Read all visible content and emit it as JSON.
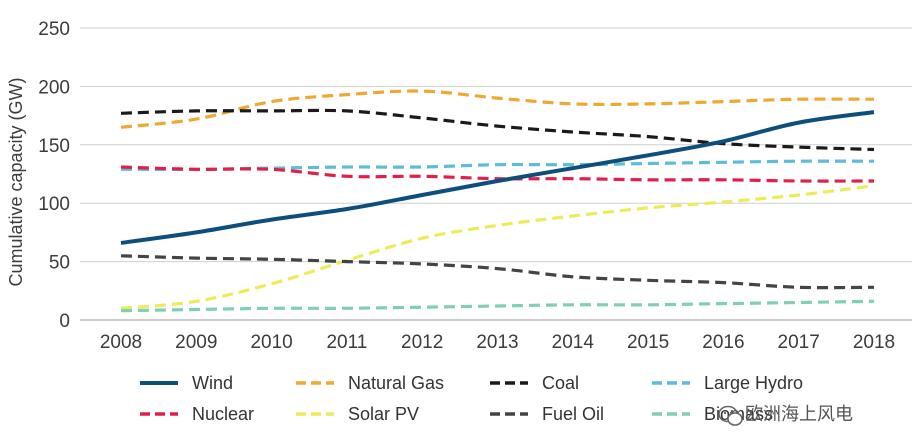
{
  "chart_data": {
    "type": "line",
    "title": "",
    "xlabel": "",
    "ylabel": "Cumulative capacity (GW)",
    "x": [
      "2008",
      "2009",
      "2010",
      "2011",
      "2012",
      "2013",
      "2014",
      "2015",
      "2016",
      "2017",
      "2018"
    ],
    "yticks": [
      "0",
      "50",
      "100",
      "150",
      "200",
      "250"
    ],
    "ylim": [
      0,
      250
    ],
    "grid": "horizontal",
    "legend_position": "bottom",
    "series": [
      {
        "name": "Wind",
        "color": "#0d4f7c",
        "dash": "solid",
        "values": [
          66,
          75,
          86,
          95,
          107,
          119,
          130,
          141,
          153,
          169,
          178
        ]
      },
      {
        "name": "Natural Gas",
        "color": "#f0a830",
        "dash": "dashed",
        "values": [
          165,
          172,
          187,
          193,
          196,
          190,
          185,
          185,
          187,
          189,
          189
        ]
      },
      {
        "name": "Coal",
        "color": "#1a1a1a",
        "dash": "dashed",
        "values": [
          177,
          179,
          179,
          179,
          173,
          166,
          161,
          157,
          151,
          148,
          146
        ]
      },
      {
        "name": "Large Hydro",
        "color": "#5bbcdc",
        "dash": "dashed",
        "values": [
          129,
          129,
          130,
          131,
          131,
          133,
          133,
          134,
          135,
          136,
          136
        ]
      },
      {
        "name": "Nuclear",
        "color": "#e0204a",
        "dash": "dashed",
        "values": [
          131,
          129,
          129,
          123,
          123,
          121,
          121,
          120,
          120,
          119,
          119
        ]
      },
      {
        "name": "Solar PV",
        "color": "#ecec58",
        "dash": "dashed",
        "values": [
          10,
          16,
          31,
          51,
          70,
          81,
          89,
          96,
          101,
          107,
          115
        ]
      },
      {
        "name": "Fuel Oil",
        "color": "#444444",
        "dash": "dashed",
        "values": [
          55,
          53,
          52,
          50,
          48,
          44,
          37,
          34,
          32,
          28,
          28
        ]
      },
      {
        "name": "Biomass",
        "color": "#80cfb4",
        "dash": "dashed",
        "values": [
          8,
          9,
          10,
          10,
          11,
          12,
          13,
          13,
          14,
          15,
          16
        ]
      }
    ]
  },
  "watermark": {
    "text": "欧洲海上风电",
    "icon": "wechat-icon"
  }
}
